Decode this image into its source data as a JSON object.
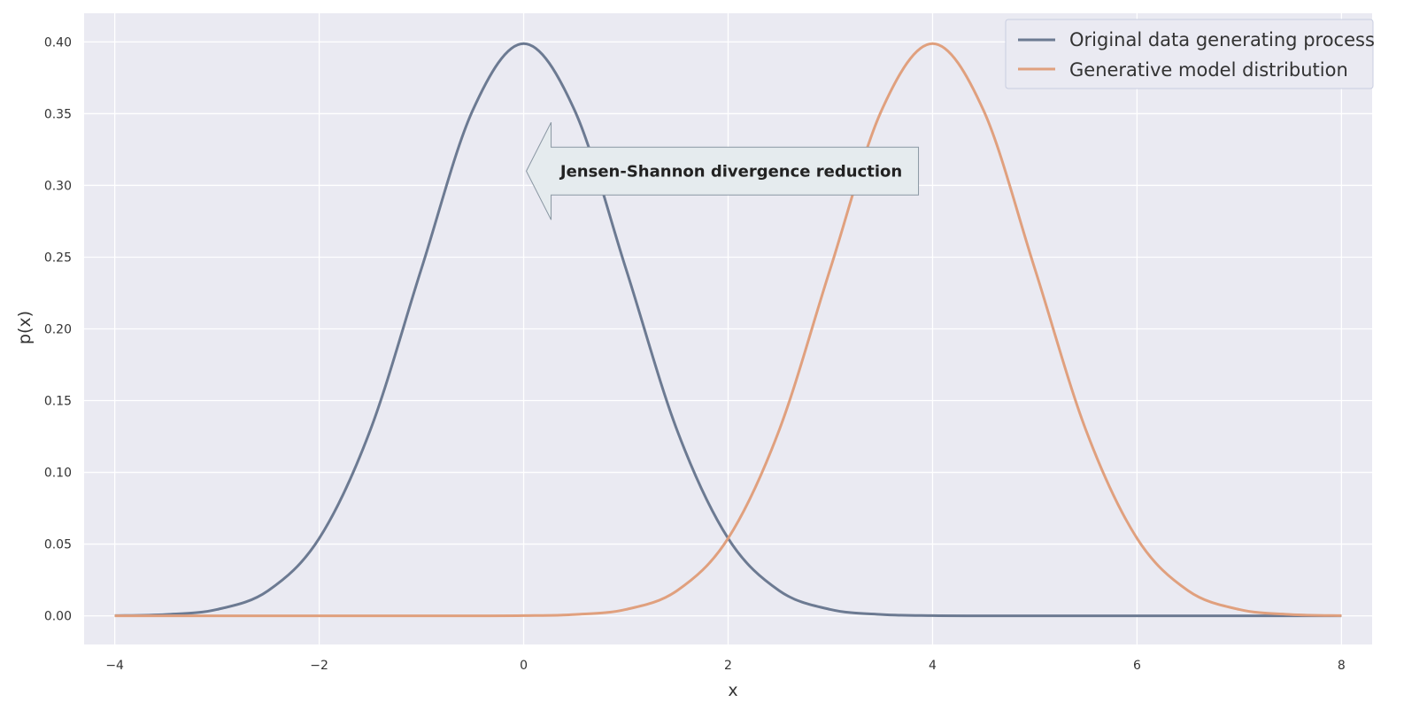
{
  "chart_data": {
    "type": "line",
    "title": "",
    "xlabel": "x",
    "ylabel": "p(x)",
    "xlim": [
      -4.3,
      8.3
    ],
    "ylim": [
      -0.02,
      0.42
    ],
    "x_ticks": [
      -4,
      -2,
      0,
      2,
      4,
      6,
      8
    ],
    "x_tick_labels": [
      "−4",
      "−2",
      "0",
      "2",
      "4",
      "6",
      "8"
    ],
    "y_ticks": [
      0.0,
      0.05,
      0.1,
      0.15,
      0.2,
      0.25,
      0.3,
      0.35,
      0.4
    ],
    "y_tick_labels": [
      "0.00",
      "0.05",
      "0.10",
      "0.15",
      "0.20",
      "0.25",
      "0.30",
      "0.35",
      "0.40"
    ],
    "grid": true,
    "legend_position": "top-right",
    "background_color": "#eaeaf2",
    "grid_color": "#ffffff",
    "series": [
      {
        "name": "Original data generating process",
        "color": "#6c7a92",
        "x": [
          -4,
          -3.5,
          -3,
          -2.5,
          -2,
          -1.5,
          -1,
          -0.5,
          0,
          0.5,
          1,
          1.5,
          2,
          2.5,
          3,
          3.5,
          4,
          4.5,
          5,
          5.5,
          6,
          6.5,
          7,
          7.5,
          8
        ],
        "values": [
          0.0001,
          0.0009,
          0.0044,
          0.0175,
          0.054,
          0.1295,
          0.242,
          0.3521,
          0.3989,
          0.3521,
          0.242,
          0.1295,
          0.054,
          0.0175,
          0.0044,
          0.0009,
          0.0001,
          0.0,
          0.0,
          0.0,
          0.0,
          0.0,
          0.0,
          0.0,
          0.0
        ]
      },
      {
        "name": "Generative model distribution",
        "color": "#e0a07e",
        "x": [
          -4,
          -3.5,
          -3,
          -2.5,
          -2,
          -1.5,
          -1,
          -0.5,
          0,
          0.5,
          1,
          1.5,
          2,
          2.5,
          3,
          3.5,
          4,
          4.5,
          5,
          5.5,
          6,
          6.5,
          7,
          7.5,
          8
        ],
        "values": [
          0.0,
          0.0,
          0.0,
          0.0,
          0.0,
          0.0,
          0.0,
          0.0,
          0.0001,
          0.0009,
          0.0044,
          0.0175,
          0.054,
          0.1295,
          0.242,
          0.3521,
          0.3989,
          0.3521,
          0.242,
          0.1295,
          0.054,
          0.0175,
          0.0044,
          0.0009,
          0.0001
        ]
      }
    ],
    "annotations": [
      {
        "text": "Jensen-Shannon divergence reduction",
        "shape": "left-arrow",
        "tip_x": 0.0,
        "tip_y": 0.31
      }
    ]
  }
}
